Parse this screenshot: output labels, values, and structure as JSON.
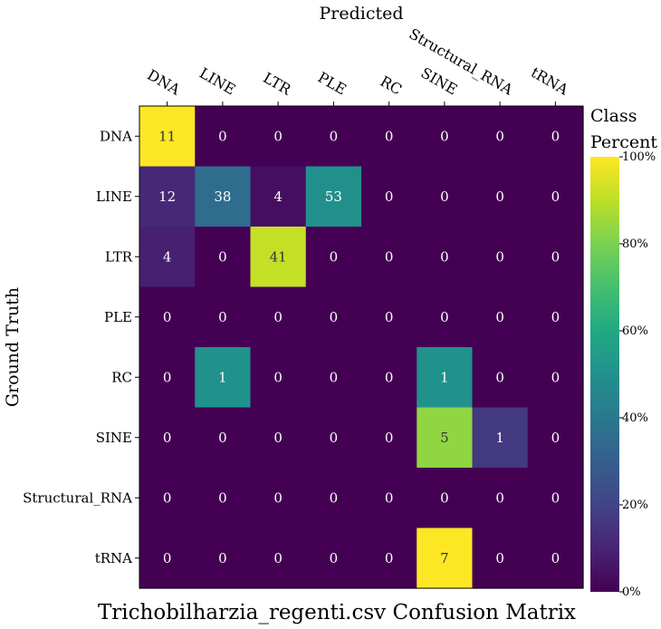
{
  "chart_data": {
    "type": "heatmap",
    "title": "Trichobilharzia_regenti.csv Confusion Matrix",
    "xlabel": "Predicted",
    "ylabel": "Ground Truth",
    "x_categories": [
      "DNA",
      "LINE",
      "LTR",
      "PLE",
      "RC",
      "SINE",
      "Structural_RNA",
      "tRNA"
    ],
    "y_categories": [
      "DNA",
      "LINE",
      "LTR",
      "PLE",
      "RC",
      "SINE",
      "Structural_RNA",
      "tRNA"
    ],
    "counts": [
      [
        11,
        0,
        0,
        0,
        0,
        0,
        0,
        0
      ],
      [
        12,
        38,
        4,
        53,
        0,
        0,
        0,
        0
      ],
      [
        4,
        0,
        41,
        0,
        0,
        0,
        0,
        0
      ],
      [
        0,
        0,
        0,
        0,
        0,
        0,
        0,
        0
      ],
      [
        0,
        1,
        0,
        0,
        0,
        1,
        0,
        0
      ],
      [
        0,
        0,
        0,
        0,
        0,
        5,
        1,
        0
      ],
      [
        0,
        0,
        0,
        0,
        0,
        0,
        0,
        0
      ],
      [
        0,
        0,
        0,
        0,
        0,
        7,
        0,
        0
      ]
    ],
    "row_percent": [
      [
        100,
        0,
        0,
        0,
        0,
        0,
        0,
        0
      ],
      [
        11.2,
        35.5,
        3.7,
        49.5,
        0,
        0,
        0,
        0
      ],
      [
        8.9,
        0,
        91.1,
        0,
        0,
        0,
        0,
        0
      ],
      [
        0,
        0,
        0,
        0,
        0,
        0,
        0,
        0
      ],
      [
        0,
        50,
        0,
        0,
        0,
        50,
        0,
        0
      ],
      [
        0,
        0,
        0,
        0,
        0,
        83.3,
        16.7,
        0
      ],
      [
        0,
        0,
        0,
        0,
        0,
        0,
        0,
        0
      ],
      [
        0,
        0,
        0,
        0,
        0,
        100,
        0,
        0
      ]
    ],
    "colorbar": {
      "title_lines": [
        "Class",
        "Percent"
      ],
      "ticks": [
        "0%",
        "20%",
        "40%",
        "60%",
        "80%",
        "100%"
      ],
      "range": [
        0,
        100
      ]
    },
    "colormap": "viridis"
  }
}
